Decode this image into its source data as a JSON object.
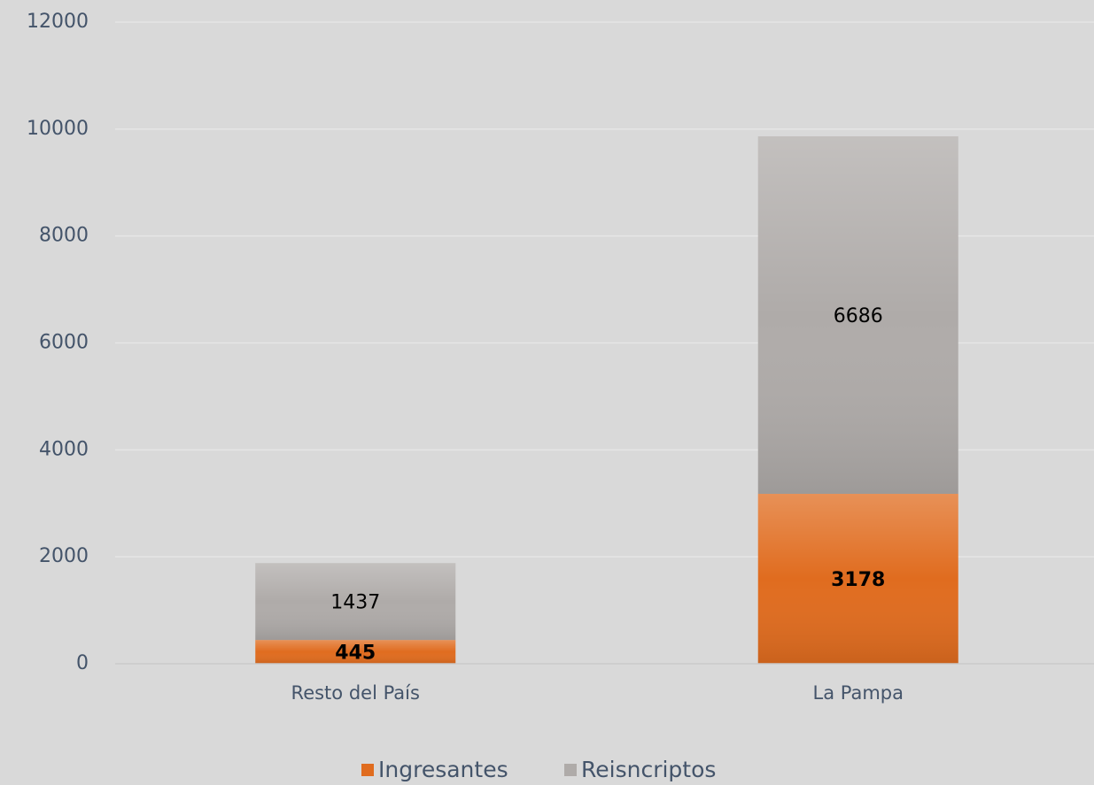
{
  "chart_data": {
    "type": "stacked_bar",
    "categories": [
      "Resto del País",
      "La Pampa"
    ],
    "series": [
      {
        "name": "Ingresantes",
        "color": "#e06c1f",
        "values": [
          445,
          3178
        ]
      },
      {
        "name": "Reisncriptos",
        "color": "#afaba9",
        "values": [
          1437,
          6686
        ]
      }
    ],
    "ylim": [
      0,
      12000
    ],
    "yticks": [
      0,
      2000,
      4000,
      6000,
      8000,
      10000,
      12000
    ],
    "grid": true,
    "legend": "bottom"
  }
}
